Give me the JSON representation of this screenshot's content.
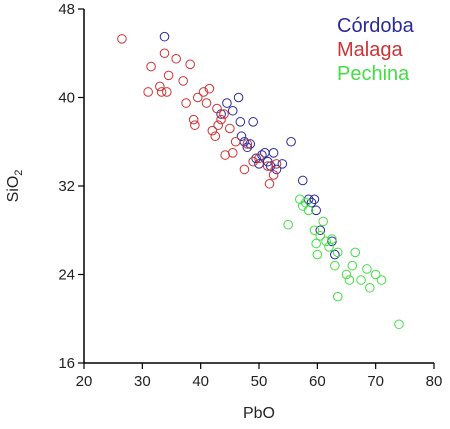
{
  "chart_data": {
    "type": "scatter",
    "xlabel": "PbO",
    "ylabel": "SiO",
    "ylabel_subscript": "2",
    "xlim": [
      20,
      80
    ],
    "ylim": [
      16,
      48
    ],
    "xticks": [
      20,
      30,
      40,
      50,
      60,
      70,
      80
    ],
    "yticks": [
      16,
      24,
      32,
      40,
      48
    ],
    "grid": false,
    "legend_position": "top-right",
    "series": [
      {
        "name": "Córdoba",
        "color": "#2a2a9a",
        "points": [
          [
            33.8,
            45.5
          ],
          [
            43.5,
            38.5
          ],
          [
            44.5,
            39.5
          ],
          [
            45.5,
            38.8
          ],
          [
            46.5,
            40.0
          ],
          [
            46.8,
            37.8
          ],
          [
            47.0,
            36.5
          ],
          [
            47.5,
            36.0
          ],
          [
            48.0,
            35.5
          ],
          [
            48.5,
            35.8
          ],
          [
            49.0,
            37.8
          ],
          [
            49.5,
            34.5
          ],
          [
            50.0,
            34.0
          ],
          [
            50.5,
            34.8
          ],
          [
            51.0,
            35.0
          ],
          [
            51.5,
            34.2
          ],
          [
            52.0,
            33.8
          ],
          [
            52.5,
            35.0
          ],
          [
            53.0,
            33.5
          ],
          [
            54.0,
            34.0
          ],
          [
            55.5,
            36.0
          ],
          [
            57.5,
            32.5
          ],
          [
            58.5,
            30.8
          ],
          [
            59.0,
            30.5
          ],
          [
            59.5,
            30.8
          ],
          [
            59.8,
            29.8
          ],
          [
            60.5,
            28.0
          ],
          [
            62.5,
            27.0
          ],
          [
            63.0,
            25.8
          ]
        ]
      },
      {
        "name": "Malaga",
        "color": "#cc3333",
        "points": [
          [
            26.5,
            45.3
          ],
          [
            31.0,
            40.5
          ],
          [
            31.5,
            42.8
          ],
          [
            33.0,
            41.0
          ],
          [
            33.3,
            40.5
          ],
          [
            33.8,
            44.0
          ],
          [
            34.2,
            40.5
          ],
          [
            34.5,
            42.0
          ],
          [
            35.8,
            43.5
          ],
          [
            37.0,
            41.5
          ],
          [
            37.5,
            39.5
          ],
          [
            38.2,
            43.0
          ],
          [
            38.8,
            38.0
          ],
          [
            39.0,
            37.5
          ],
          [
            39.5,
            40.0
          ],
          [
            40.5,
            40.5
          ],
          [
            41.0,
            39.5
          ],
          [
            41.5,
            40.8
          ],
          [
            42.0,
            37.0
          ],
          [
            42.5,
            36.5
          ],
          [
            42.8,
            39.0
          ],
          [
            43.0,
            37.5
          ],
          [
            43.5,
            38.0
          ],
          [
            44.0,
            38.5
          ],
          [
            44.2,
            34.8
          ],
          [
            45.0,
            37.2
          ],
          [
            45.5,
            35.0
          ],
          [
            46.0,
            36.0
          ],
          [
            47.5,
            33.5
          ],
          [
            48.0,
            35.8
          ],
          [
            49.0,
            34.2
          ],
          [
            50.0,
            34.5
          ],
          [
            51.5,
            33.8
          ],
          [
            51.8,
            32.2
          ],
          [
            52.5,
            33.0
          ],
          [
            53.0,
            34.0
          ]
        ]
      },
      {
        "name": "Pechina",
        "color": "#44dd44",
        "points": [
          [
            55.0,
            28.5
          ],
          [
            57.0,
            30.8
          ],
          [
            57.5,
            30.2
          ],
          [
            58.0,
            30.5
          ],
          [
            58.5,
            29.8
          ],
          [
            59.5,
            28.0
          ],
          [
            59.8,
            26.8
          ],
          [
            60.0,
            25.8
          ],
          [
            60.5,
            27.5
          ],
          [
            61.0,
            28.8
          ],
          [
            61.5,
            27.0
          ],
          [
            62.0,
            26.5
          ],
          [
            62.5,
            27.2
          ],
          [
            63.0,
            24.8
          ],
          [
            63.5,
            26.0
          ],
          [
            63.5,
            22.0
          ],
          [
            65.0,
            24.0
          ],
          [
            65.5,
            23.5
          ],
          [
            66.0,
            24.8
          ],
          [
            66.5,
            26.0
          ],
          [
            67.5,
            23.5
          ],
          [
            68.5,
            24.5
          ],
          [
            69.0,
            22.8
          ],
          [
            70.0,
            24.0
          ],
          [
            71.0,
            23.5
          ],
          [
            74.0,
            19.5
          ]
        ]
      }
    ]
  }
}
